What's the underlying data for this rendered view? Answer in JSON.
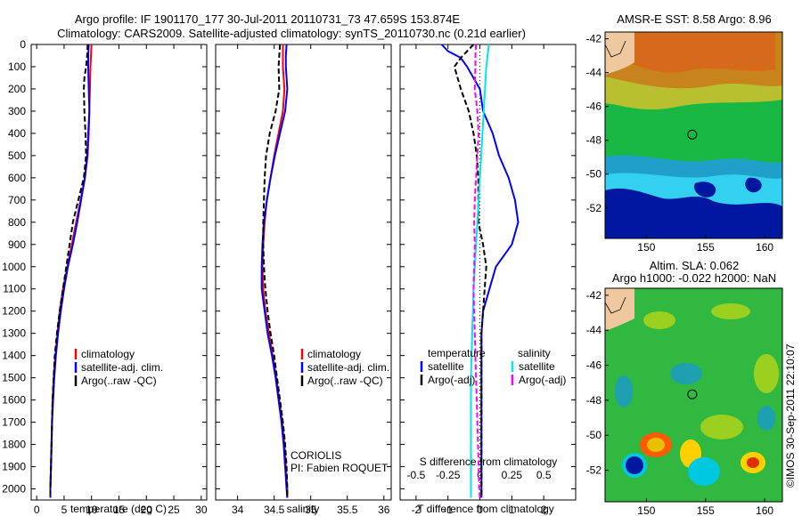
{
  "header": {
    "line1": "Argo profile: IF 1901170_177 30-Jul-2011 20110731_73 47.659S 153.874E",
    "line2": "Climatology: CARS2009. Satellite-adjusted climatology: synTS_20110730.nc (0.21d earlier)"
  },
  "depth_ticks": [
    0,
    100,
    200,
    300,
    400,
    500,
    600,
    700,
    800,
    900,
    1000,
    1100,
    1200,
    1300,
    1400,
    1500,
    1600,
    1700,
    1800,
    1900,
    2000
  ],
  "colors": {
    "climatology": "#ff0000",
    "satellite": "#0000ff",
    "argo": "#000000",
    "sat_s": "#00e5ee",
    "argo_s": "#ff00ff",
    "frame": "#000000"
  },
  "chart_data": [
    {
      "type": "line",
      "xlabel": "temperature (deg C)",
      "xlim": [
        -1,
        31
      ],
      "ylim": [
        0,
        2050
      ],
      "x_ticks": [
        0,
        5,
        10,
        15,
        20,
        25,
        30
      ],
      "legend": [
        "climatology",
        "satellite-adj. clim.",
        "Argo(..raw -QC)"
      ],
      "series": [
        {
          "name": "climatology",
          "depth": [
            0,
            50,
            100,
            200,
            300,
            400,
            500,
            600,
            700,
            800,
            900,
            1000,
            1100,
            1200,
            1300,
            1400,
            1500,
            1600,
            1700,
            1800,
            1900,
            2000,
            2040
          ],
          "values": [
            10.0,
            9.9,
            9.8,
            9.7,
            9.6,
            9.5,
            9.3,
            8.8,
            8.0,
            7.2,
            6.4,
            5.6,
            4.8,
            4.2,
            3.8,
            3.4,
            3.1,
            2.9,
            2.8,
            2.7,
            2.6,
            2.5,
            2.5
          ]
        },
        {
          "name": "satellite-adj. clim.",
          "depth": [
            0,
            50,
            100,
            200,
            300,
            400,
            500,
            600,
            700,
            800,
            900,
            1000,
            1100,
            1200,
            1300,
            1400,
            1500,
            1600,
            1700,
            1800,
            1900,
            2000,
            2040
          ],
          "values": [
            9.5,
            9.4,
            9.4,
            9.5,
            9.6,
            9.4,
            9.2,
            8.8,
            8.1,
            7.4,
            6.6,
            5.7,
            5.0,
            4.4,
            3.9,
            3.5,
            3.2,
            3.0,
            2.8,
            2.7,
            2.6,
            2.5,
            2.5
          ]
        },
        {
          "name": "Argo(..raw -QC)",
          "depth": [
            0,
            50,
            100,
            150,
            200,
            300,
            400,
            500,
            600,
            700,
            800,
            900,
            1000,
            1100,
            1200,
            1300,
            1400,
            1500,
            1600,
            1700,
            1800,
            1900,
            2000,
            2040
          ],
          "values": [
            9.3,
            9.2,
            9.0,
            8.7,
            8.6,
            8.7,
            8.9,
            9.0,
            8.6,
            7.6,
            6.6,
            6.0,
            5.4,
            4.8,
            4.2,
            3.7,
            3.3,
            3.1,
            2.9,
            2.8,
            2.7,
            2.6,
            2.5,
            2.5
          ]
        }
      ]
    },
    {
      "type": "line",
      "xlabel": "salinity",
      "xlim": [
        33.7,
        36.1
      ],
      "ylim": [
        0,
        2050
      ],
      "x_ticks": [
        34,
        34.5,
        35,
        35.5,
        36
      ],
      "legend": [
        "climatology",
        "satellite-adj. clim.",
        "Argo(..raw -QC)"
      ],
      "annotation": [
        "CORIOLIS",
        "PI: Fabien ROQUET"
      ],
      "series": [
        {
          "name": "climatology",
          "depth": [
            0,
            50,
            100,
            200,
            300,
            400,
            500,
            600,
            700,
            800,
            900,
            1000,
            1100,
            1200,
            1300,
            1400,
            1500,
            1600,
            1700,
            1800,
            1900,
            2000,
            2040
          ],
          "values": [
            34.62,
            34.62,
            34.62,
            34.64,
            34.62,
            34.56,
            34.5,
            34.45,
            34.4,
            34.37,
            34.35,
            34.34,
            34.35,
            34.38,
            34.43,
            34.48,
            34.53,
            34.57,
            34.61,
            34.64,
            34.66,
            34.68,
            34.68
          ]
        },
        {
          "name": "satellite-adj. clim.",
          "depth": [
            0,
            50,
            100,
            200,
            300,
            400,
            500,
            600,
            700,
            800,
            900,
            1000,
            1100,
            1200,
            1300,
            1400,
            1500,
            1600,
            1700,
            1800,
            1900,
            2000,
            2040
          ],
          "values": [
            34.67,
            34.66,
            34.66,
            34.68,
            34.65,
            34.58,
            34.51,
            34.45,
            34.4,
            34.36,
            34.34,
            34.33,
            34.33,
            34.37,
            34.41,
            34.47,
            34.52,
            34.56,
            34.6,
            34.63,
            34.65,
            34.67,
            34.68
          ]
        },
        {
          "name": "Argo(..raw -QC)",
          "depth": [
            0,
            50,
            100,
            200,
            300,
            400,
            500,
            600,
            700,
            800,
            900,
            1000,
            1100,
            1200,
            1300,
            1400,
            1500,
            1600,
            1700,
            1800,
            1900,
            2000,
            2040
          ],
          "values": [
            34.58,
            34.57,
            34.56,
            34.57,
            34.52,
            34.44,
            34.39,
            34.37,
            34.36,
            34.35,
            34.35,
            34.36,
            34.38,
            34.41,
            34.45,
            34.5,
            34.54,
            34.58,
            34.62,
            34.65,
            34.67,
            34.68,
            34.68
          ]
        }
      ]
    },
    {
      "type": "line",
      "xlabel": "T difference from climatology",
      "xlim": [
        -2.5,
        3.0
      ],
      "ylim": [
        0,
        2050
      ],
      "x_ticks": [
        -2,
        -1,
        0,
        1,
        2
      ],
      "top_label": "S difference from climatology",
      "top_ticks": [
        {
          "label": "-0.5",
          "t": -2
        },
        {
          "label": "-0.25",
          "t": -1
        },
        {
          "label": "0",
          "t": 0
        },
        {
          "label": "0.25",
          "t": 1
        },
        {
          "label": "0.5",
          "t": 2
        }
      ],
      "legend_titles": [
        "temperature",
        "salinity"
      ],
      "legend": [
        "satellite",
        "Argo(-adj)",
        "satellite",
        "Argo(-adj)"
      ],
      "series": [
        {
          "name": "satellite",
          "depth": [
            0,
            30,
            60,
            100,
            200,
            300,
            400,
            500,
            600,
            700,
            800,
            900,
            1000,
            1100,
            1200,
            1300,
            1400,
            1500,
            1600,
            1700,
            1800,
            1900,
            2000,
            2040
          ],
          "values": [
            -1.2,
            -1.0,
            -0.6,
            -0.4,
            0.0,
            0.1,
            0.4,
            0.6,
            0.9,
            1.1,
            1.2,
            1.0,
            0.5,
            0.3,
            0.1,
            0.05,
            0.05,
            0.05,
            0.05,
            0.05,
            0.05,
            0.05,
            0.05,
            0.05
          ]
        },
        {
          "name": "Argo(-adj)",
          "depth": [
            0,
            30,
            60,
            100,
            150,
            200,
            300,
            400,
            500,
            600,
            700,
            800,
            900,
            1000,
            1100,
            1200,
            1300,
            1400,
            1500,
            1600,
            1700,
            1800,
            1900,
            2000,
            2040
          ],
          "values": [
            -0.2,
            -0.4,
            -0.6,
            -0.8,
            -0.7,
            -0.6,
            -0.35,
            -0.2,
            -0.1,
            -0.05,
            -0.05,
            -0.05,
            0.1,
            0.2,
            0.15,
            0.1,
            0.05,
            0.05,
            0.05,
            0.05,
            0.05,
            0.05,
            0.05,
            0.05,
            0.05
          ]
        },
        {
          "name": "satellite",
          "depth": [
            0,
            50,
            100,
            200,
            300,
            400,
            500,
            600,
            700,
            800,
            900,
            1000,
            1100,
            1200,
            1300,
            1400,
            1500,
            1600,
            1700,
            1800,
            1900,
            2000,
            2040
          ],
          "values": [
            0.28,
            0.24,
            0.2,
            0.16,
            0.12,
            0.08,
            0.04,
            0.0,
            -0.04,
            -0.08,
            -0.12,
            -0.16,
            -0.2,
            -0.22,
            -0.24,
            -0.26,
            -0.28,
            -0.28,
            -0.28,
            -0.28,
            -0.28,
            -0.28,
            -0.28
          ]
        },
        {
          "name": "Argo(-adj)",
          "depth": [
            0,
            50,
            100,
            200,
            300,
            400,
            500,
            600,
            700,
            800,
            900,
            1000,
            1100,
            1200,
            1300,
            1400,
            1500,
            1600,
            1700,
            1800,
            1900,
            2000,
            2040
          ],
          "values": [
            -0.12,
            -0.14,
            -0.14,
            -0.16,
            -0.08,
            -0.04,
            -0.08,
            -0.12,
            -0.16,
            -0.18,
            -0.16,
            -0.18,
            -0.2,
            -0.18,
            -0.16,
            -0.14,
            -0.12,
            -0.1,
            -0.08,
            -0.06,
            -0.04,
            -0.02,
            0.0
          ]
        }
      ]
    },
    {
      "type": "heatmap",
      "title": "AMSR-E SST: 8.58 Argo: 8.96",
      "xlim": [
        146.5,
        161.5
      ],
      "ylim": [
        -53.8,
        -41.6
      ],
      "x_ticks": [
        150,
        155,
        160
      ],
      "y_ticks": [
        -42,
        -44,
        -46,
        -48,
        -50,
        -52
      ],
      "marker": {
        "lon": 153.874,
        "lat": -47.659
      }
    },
    {
      "type": "heatmap",
      "title_lines": [
        "Altim. SLA: 0.062",
        "Argo h1000: -0.022 h2000: NaN"
      ],
      "xlim": [
        146.5,
        161.5
      ],
      "ylim": [
        -53.8,
        -41.6
      ],
      "x_ticks": [
        150,
        155,
        160
      ],
      "y_ticks": [
        -42,
        -44,
        -46,
        -48,
        -50,
        -52
      ],
      "marker": {
        "lon": 153.874,
        "lat": -47.659
      }
    }
  ],
  "footer_stamp": "©IMOS 30-Sep-2011 22:10:07"
}
